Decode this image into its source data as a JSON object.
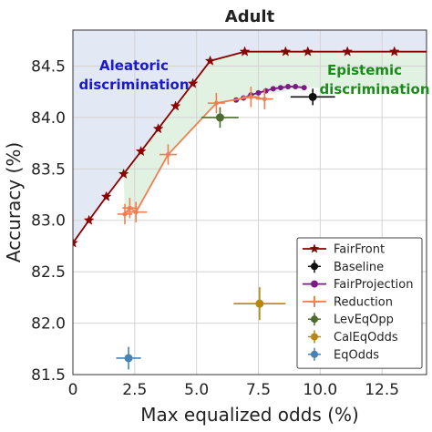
{
  "chart_data": {
    "type": "scatter",
    "title": "Adult",
    "xlabel": "Max equalized odds (%)",
    "ylabel": "Accuracy (%)",
    "xlim": [
      0,
      14.3
    ],
    "ylim": [
      81.5,
      84.85
    ],
    "xticks": [
      0,
      2.5,
      5.0,
      7.5,
      10.0,
      12.5
    ],
    "xtick_labels": [
      "0",
      "2.5",
      "5.0",
      "7.5",
      "10.0",
      "12.5"
    ],
    "yticks": [
      81.5,
      82.0,
      82.5,
      83.0,
      83.5,
      84.0,
      84.5
    ],
    "ytick_labels": [
      "81.5",
      "82.0",
      "82.5",
      "83.0",
      "83.5",
      "84.0",
      "84.5"
    ],
    "grid": true,
    "legend_position": "bottom-right",
    "annotations": [
      {
        "text": "Aleatoric",
        "color": "#1a1acc"
      },
      {
        "text": "discrimination",
        "color": "#1a1acc"
      },
      {
        "text": "Epistemic",
        "color": "#1a8a1a"
      },
      {
        "text": "discrimination",
        "color": "#1a8a1a"
      }
    ],
    "colors": {
      "aleatoric_fill": "#e3e8f5",
      "epistemic_fill": "#e2f2e2"
    },
    "series": [
      {
        "name": "FairFront",
        "style": "line-star",
        "color": "#8b0000",
        "x": [
          0.0,
          0.65,
          1.35,
          2.05,
          2.75,
          3.45,
          4.15,
          4.85,
          5.55,
          6.95,
          8.6,
          9.5,
          11.1,
          13.0,
          14.3
        ],
        "y": [
          82.78,
          83.0,
          83.23,
          83.45,
          83.67,
          83.89,
          84.11,
          84.33,
          84.55,
          84.64,
          84.64,
          84.64,
          84.64,
          84.64,
          84.64
        ]
      },
      {
        "name": "Baseline",
        "style": "marker",
        "color": "#111111",
        "x": [
          9.7
        ],
        "y": [
          84.2
        ],
        "xerr": [
          0.9
        ],
        "yerr": [
          0.08
        ]
      },
      {
        "name": "FairProjection",
        "style": "line-dot",
        "color": "#7d1a86",
        "x": [
          6.6,
          6.9,
          7.2,
          7.5,
          7.8,
          8.1,
          8.4,
          8.7,
          9.0,
          9.35
        ],
        "y": [
          84.17,
          84.19,
          84.22,
          84.24,
          84.26,
          84.28,
          84.29,
          84.3,
          84.3,
          84.29
        ]
      },
      {
        "name": "Reduction",
        "style": "line-plus",
        "color": "#f08050",
        "x": [
          2.1,
          2.3,
          2.55,
          3.85,
          5.8,
          7.2,
          7.75
        ],
        "y": [
          83.06,
          83.12,
          83.08,
          83.64,
          84.14,
          84.2,
          84.18
        ],
        "xerr": [
          0.3,
          0.3,
          0.45,
          0.35,
          0.35,
          0.35,
          0.35
        ],
        "yerr": [
          0.1,
          0.1,
          0.1,
          0.1,
          0.1,
          0.1,
          0.1
        ]
      },
      {
        "name": "LevEqOpp",
        "style": "marker",
        "color": "#4d6b2e",
        "x": [
          5.95
        ],
        "y": [
          84.0
        ],
        "xerr": [
          0.75
        ],
        "yerr": [
          0.1
        ]
      },
      {
        "name": "CalEqOdds",
        "style": "marker",
        "color": "#b8860b",
        "x": [
          7.55
        ],
        "y": [
          82.19
        ],
        "xerr": [
          1.05
        ],
        "yerr": [
          0.16
        ]
      },
      {
        "name": "EqOdds",
        "style": "marker",
        "color": "#4682b4",
        "x": [
          2.25
        ],
        "y": [
          81.66
        ],
        "xerr": [
          0.5
        ],
        "yerr": [
          0.11
        ]
      }
    ]
  }
}
